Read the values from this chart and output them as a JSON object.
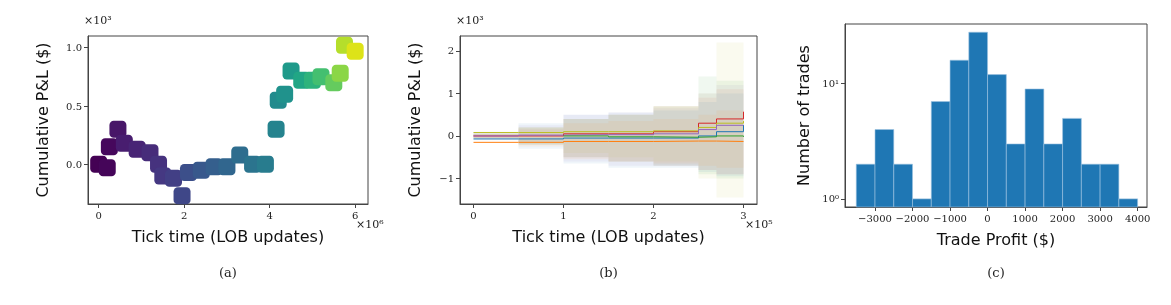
{
  "chart_data": [
    {
      "type": "scatter",
      "xlabel": "Tick time (LOB updates)",
      "ylabel": "Cumulative P&L ($)",
      "marker": "square",
      "annotations": [
        "×10³",
        "×10⁶",
        "(a)"
      ],
      "x": [
        0,
        0.2,
        0.25,
        0.45,
        0.6,
        0.9,
        1.2,
        1.4,
        1.5,
        1.75,
        1.95,
        2.1,
        2.4,
        2.7,
        3.0,
        3.3,
        3.6,
        3.9,
        4.15,
        4.2,
        4.35,
        4.5,
        4.75,
        5.0,
        5.2,
        5.5,
        5.65,
        5.75,
        6.0
      ],
      "values": [
        0,
        -0.03,
        0.15,
        0.3,
        0.18,
        0.13,
        0.1,
        0,
        -0.1,
        -0.12,
        -0.27,
        -0.07,
        -0.05,
        -0.02,
        -0.02,
        0.08,
        0,
        0,
        0.3,
        0.55,
        0.6,
        0.8,
        0.72,
        0.72,
        0.75,
        0.7,
        0.78,
        1.02,
        0.97
      ],
      "colors": [
        "#440154",
        "#450559",
        "#46085c",
        "#481668",
        "#481d6f",
        "#482475",
        "#472c7a",
        "#46327e",
        "#453882",
        "#423f85",
        "#3f4788",
        "#3c4f8a",
        "#38588c",
        "#355f8d",
        "#31668e",
        "#2e6d8e",
        "#2b748e",
        "#287c8e",
        "#25838e",
        "#228b8d",
        "#20928c",
        "#1f9a8a",
        "#21a685",
        "#2eb37c",
        "#44bf70",
        "#65cb5e",
        "#8bd646",
        "#b5de2b",
        "#dde318"
      ],
      "xlim": [
        -0.25,
        6.3
      ],
      "xticks": [
        0,
        2,
        4,
        6
      ],
      "ylim": [
        -0.34,
        1.1
      ],
      "yticks": [
        {
          "value": 0,
          "label": "0.0"
        },
        {
          "value": 0.5,
          "label": "0.5"
        },
        {
          "value": 1,
          "label": "1.0"
        }
      ]
    },
    {
      "type": "step",
      "xlabel": "Tick time (LOB updates)",
      "ylabel": "Cumulative P&L ($)",
      "marker": "none",
      "line_style": "solid",
      "annotations": [
        "×10³",
        "×10⁵",
        "(b)"
      ],
      "x": [
        0,
        0.5,
        1.0,
        1.5,
        2.0,
        2.5,
        2.7,
        3.0
      ],
      "series": [
        {
          "color": "#d62728",
          "values": [
            0,
            0,
            0.05,
            0.05,
            0.1,
            0.3,
            0.4,
            0.57
          ],
          "lower": [
            -0.05,
            -0.15,
            -0.5,
            -0.6,
            -0.7,
            -0.8,
            -0.9,
            -1.0
          ],
          "upper": [
            0.05,
            0.15,
            0.4,
            0.5,
            0.7,
            0.9,
            1.1,
            1.2
          ]
        },
        {
          "color": "#bcbd22",
          "values": [
            0.08,
            0.08,
            0.1,
            0.1,
            0.12,
            0.2,
            0.3,
            0.35
          ],
          "lower": [
            -0.05,
            -0.2,
            -0.4,
            -0.5,
            -0.6,
            -1.0,
            -1.45,
            -1.45
          ],
          "upper": [
            0.05,
            0.2,
            0.4,
            0.5,
            0.7,
            1.0,
            2.2,
            2.2
          ]
        },
        {
          "color": "#9467bd",
          "values": [
            0,
            0.02,
            0.03,
            0.03,
            0.05,
            0.15,
            0.25,
            0.2
          ],
          "lower": [
            -0.05,
            -0.2,
            -0.6,
            -0.7,
            -0.7,
            -0.8,
            -0.9,
            -0.9
          ],
          "upper": [
            0.05,
            0.25,
            0.5,
            0.55,
            0.65,
            1.0,
            1.2,
            1.2
          ]
        },
        {
          "color": "#1f77b4",
          "values": [
            -0.07,
            -0.07,
            -0.05,
            -0.05,
            -0.05,
            0,
            0.1,
            0.25
          ],
          "lower": [
            -0.1,
            -0.3,
            -0.65,
            -0.75,
            -0.75,
            -0.85,
            -0.95,
            -1.05
          ],
          "upper": [
            0.1,
            0.3,
            0.5,
            0.55,
            0.6,
            0.8,
            1.0,
            1.1
          ]
        },
        {
          "color": "#2ca02c",
          "values": [
            null,
            null,
            0,
            -0.02,
            -0.03,
            -0.02,
            0,
            -0.02
          ],
          "lower": [
            -0.05,
            -0.2,
            -0.5,
            -0.6,
            -0.7,
            -0.9,
            -1.0,
            -1.05
          ],
          "upper": [
            0.05,
            0.2,
            0.4,
            0.5,
            0.7,
            1.4,
            1.3,
            1.25
          ]
        },
        {
          "color": "#ff7f0e",
          "values": [
            -0.15,
            -0.15,
            -0.13,
            -0.13,
            -0.12,
            -0.12,
            -0.13,
            -0.13
          ],
          "lower": [
            -0.08,
            -0.25,
            -0.55,
            -0.6,
            -0.65,
            -0.7,
            -0.75,
            -0.8
          ],
          "upper": [
            0.05,
            0.2,
            0.3,
            0.35,
            0.4,
            0.5,
            0.6,
            0.6
          ]
        }
      ],
      "xlim": [
        -0.15,
        3.15
      ],
      "xticks": [
        0,
        1,
        2,
        3
      ],
      "ylim": [
        -1.6,
        2.35
      ],
      "yticks": [
        {
          "value": -1,
          "label": "−1"
        },
        0,
        1,
        2
      ]
    },
    {
      "type": "histogram",
      "xlabel": "Trade Profit ($)",
      "ylabel": "Number of trades",
      "log": true,
      "color": "#1f77b4",
      "annotations": [
        "(c)"
      ],
      "bins": [
        -3500,
        -3000,
        -2500,
        -2000,
        -1500,
        -1000,
        -500,
        0,
        500,
        1000,
        1500,
        2000,
        2500,
        3000,
        3500,
        4000
      ],
      "values": [
        2,
        4,
        2,
        1,
        7,
        16,
        28,
        12,
        3,
        9,
        3,
        5,
        2,
        2,
        1
      ],
      "xlim": [
        -3800,
        4250
      ],
      "xticks": [
        {
          "value": -3000,
          "label": "−3000"
        },
        {
          "value": -2000,
          "label": "−2000"
        },
        {
          "value": -1000,
          "label": "−1000"
        },
        0,
        1000,
        2000,
        3000,
        4000
      ],
      "ylim": [
        0.85,
        33
      ],
      "yticks": [
        {
          "value": 1,
          "label": "10⁰"
        },
        {
          "value": 10,
          "label": "10¹"
        }
      ]
    }
  ]
}
